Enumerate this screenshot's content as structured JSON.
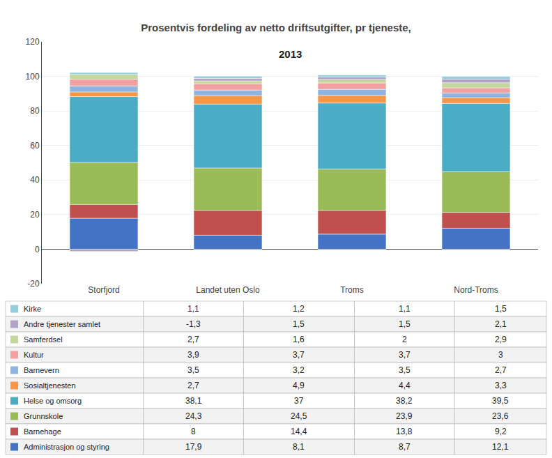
{
  "chart_data": {
    "type": "bar",
    "stacked": true,
    "grid": true,
    "title": "Prosentvis fordeling av netto driftsutgifter, pr tjeneste,",
    "subtitle": "2013",
    "categories": [
      "Storfjord",
      "Landet uten Oslo",
      "Troms",
      "Nord-Troms"
    ],
    "series": [
      {
        "name": "Administrasjon og styring",
        "color": "#4472C4",
        "values": [
          17.9,
          8.1,
          8.7,
          12.1
        ],
        "value_labels": [
          "17,9",
          "8,1",
          "8,7",
          "12,1"
        ]
      },
      {
        "name": "Barnehage",
        "color": "#C0504D",
        "values": [
          8.0,
          14.4,
          13.8,
          9.2
        ],
        "value_labels": [
          "8",
          "14,4",
          "13,8",
          "9,2"
        ]
      },
      {
        "name": "Grunnskole",
        "color": "#9BBB59",
        "values": [
          24.3,
          24.5,
          23.9,
          23.6
        ],
        "value_labels": [
          "24,3",
          "24,5",
          "23,9",
          "23,6"
        ]
      },
      {
        "name": "Helse og omsorg",
        "color": "#4BACC6",
        "values": [
          38.1,
          37.0,
          38.2,
          39.5
        ],
        "value_labels": [
          "38,1",
          "37",
          "38,2",
          "39,5"
        ]
      },
      {
        "name": "Sosialtjenesten",
        "color": "#F79646",
        "values": [
          2.7,
          4.9,
          4.4,
          3.3
        ],
        "value_labels": [
          "2,7",
          "4,9",
          "4,4",
          "3,3"
        ]
      },
      {
        "name": "Barnevern",
        "color": "#8DB4E2",
        "values": [
          3.5,
          3.2,
          3.5,
          2.7
        ],
        "value_labels": [
          "3,5",
          "3,2",
          "3,5",
          "2,7"
        ]
      },
      {
        "name": "Kultur",
        "color": "#F2A0A1",
        "values": [
          3.9,
          3.7,
          3.7,
          3.0
        ],
        "value_labels": [
          "3,9",
          "3,7",
          "3,7",
          "3"
        ]
      },
      {
        "name": "Samferdsel",
        "color": "#C3D69B",
        "values": [
          2.7,
          1.6,
          2.0,
          2.9
        ],
        "value_labels": [
          "2,7",
          "1,6",
          "2",
          "2,9"
        ]
      },
      {
        "name": "Andre tjenester samlet",
        "color": "#B3A2C7",
        "values": [
          -1.3,
          1.5,
          1.5,
          2.1
        ],
        "value_labels": [
          "-1,3",
          "1,5",
          "1,5",
          "2,1"
        ]
      },
      {
        "name": "Kirke",
        "color": "#92CDDC",
        "values": [
          1.1,
          1.2,
          1.1,
          1.5
        ],
        "value_labels": [
          "1,1",
          "1,2",
          "1,1",
          "1,5"
        ]
      }
    ],
    "ylim": [
      -20,
      120
    ],
    "yticks": [
      -20,
      0,
      20,
      40,
      60,
      80,
      100,
      120
    ]
  }
}
